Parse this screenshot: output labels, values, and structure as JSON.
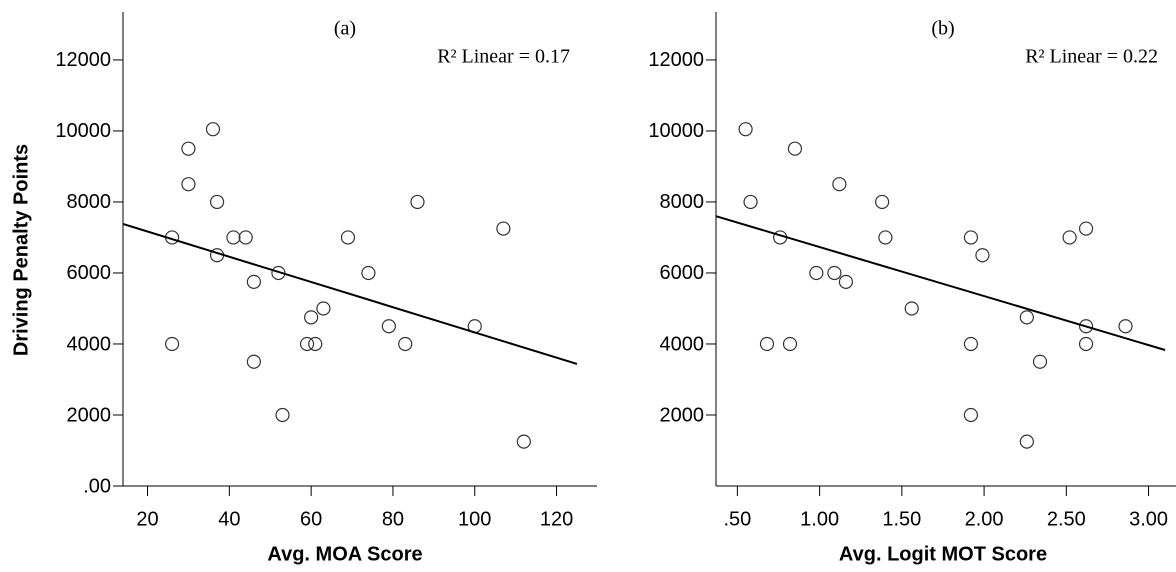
{
  "chart_data": [
    {
      "type": "scatter",
      "title": "(a)",
      "annotation": "R² Linear = 0.17",
      "x_label": "Avg. MOA Score",
      "y_label": "Driving Penalty Points",
      "xlim": [
        14,
        125
      ],
      "ylim": [
        0,
        13350
      ],
      "xticks": [
        20,
        40,
        60,
        80,
        100,
        120
      ],
      "yticks": [
        {
          "value": 0,
          "label": ".00"
        },
        2000,
        4000,
        6000,
        8000,
        10000,
        12000
      ],
      "color": "#333333",
      "x": [
        26,
        26,
        30,
        30,
        36,
        37,
        37,
        41,
        44,
        46,
        46,
        52,
        53,
        59,
        60,
        61,
        63,
        69,
        74,
        79,
        83,
        86,
        100,
        107,
        112
      ],
      "values": [
        4000,
        7000,
        9500,
        8500,
        10050,
        8000,
        6500,
        7000,
        7000,
        5750,
        3500,
        6000,
        2000,
        4000,
        4750,
        4000,
        5000,
        7000,
        6000,
        4500,
        4000,
        8000,
        4500,
        7250,
        1250
      ],
      "fit_line": {
        "x": [
          14,
          125
        ],
        "y": [
          7380,
          3437
        ]
      }
    },
    {
      "type": "scatter",
      "title": "(b)",
      "annotation": "R² Linear = 0.22",
      "x_label": "Avg. Logit MOT Score",
      "xlim": [
        0.37,
        3.1
      ],
      "ylim": [
        0,
        13350
      ],
      "xticks": [
        {
          "value": 0.5,
          "label": ".50"
        },
        {
          "value": 1,
          "label": "1.00"
        },
        {
          "value": 1.5,
          "label": "1.50"
        },
        {
          "value": 2,
          "label": "2.00"
        },
        {
          "value": 2.5,
          "label": "2.50"
        },
        {
          "value": 3,
          "label": "3.00"
        }
      ],
      "yticks": [
        2000,
        4000,
        6000,
        8000,
        10000,
        12000
      ],
      "color": "#333333",
      "x": [
        0.55,
        0.58,
        0.68,
        0.76,
        0.82,
        0.85,
        0.98,
        1.09,
        1.12,
        1.16,
        1.38,
        1.4,
        1.56,
        1.92,
        1.92,
        1.92,
        1.99,
        2.26,
        2.26,
        2.34,
        2.52,
        2.62,
        2.62,
        2.62,
        2.86
      ],
      "values": [
        10050,
        8000,
        4000,
        7000,
        4000,
        9500,
        6000,
        6000,
        8500,
        5750,
        8000,
        7000,
        5000,
        7000,
        4000,
        2000,
        6500,
        4750,
        1250,
        3500,
        7000,
        7250,
        4500,
        4000,
        4500
      ],
      "fit_line": {
        "x": [
          0.37,
          3.1
        ],
        "y": [
          7600,
          3830
        ]
      }
    }
  ]
}
